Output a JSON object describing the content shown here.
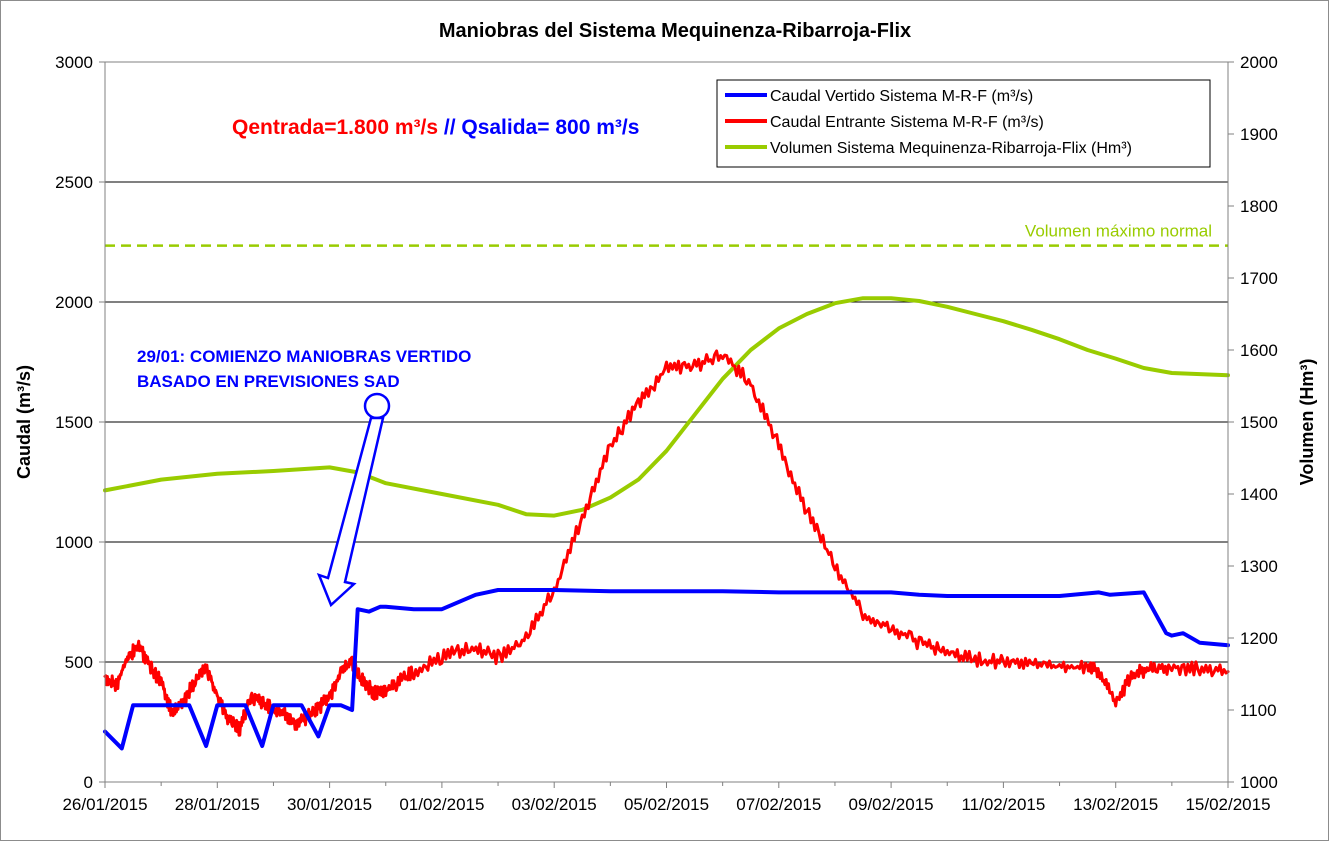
{
  "chart_data": {
    "type": "line",
    "title": "Maniobras del Sistema Mequinenza-Ribarroja-Flix",
    "y_left": {
      "label": "Caudal (m³/s)",
      "range": [
        0,
        3000
      ],
      "ticks": [
        "0",
        "500",
        "1000",
        "1500",
        "2000",
        "2500",
        "3000"
      ]
    },
    "y_right": {
      "label": "Volumen (Hm³)",
      "range": [
        1000,
        2000
      ],
      "ticks": [
        "1000",
        "1100",
        "1200",
        "1300",
        "1400",
        "1500",
        "1600",
        "1700",
        "1800",
        "1900",
        "2000"
      ]
    },
    "x_axis": {
      "range_days": [
        "26/01/2015",
        "15/02/2015"
      ],
      "ticks": [
        "26/01/2015",
        "28/01/2015",
        "30/01/2015",
        "01/02/2015",
        "03/02/2015",
        "05/02/2015",
        "07/02/2015",
        "09/02/2015",
        "11/02/2015",
        "13/02/2015",
        "15/02/2015"
      ]
    },
    "grid": "horizontal at left-axis ticks",
    "legend_position": "top-right",
    "colors": {
      "vertido": "#0000ff",
      "entrante": "#ff0000",
      "volumen": "#99cc00",
      "annotation_red": "#ff0000",
      "annotation_blue": "#0000ff"
    },
    "headline": {
      "part1": "Qentrada=1.800 m³/s",
      "part2": " // Qsalida= 800 m³/s"
    },
    "reference_line": {
      "label": "Volumen máximo normal",
      "value_hm3": 1745,
      "axis": "right",
      "style": "dashed",
      "color": "#99cc00"
    },
    "annotation": {
      "line1": "29/01: COMIENZO MANIOBRAS VERTIDO",
      "line2": "BASADO EN PREVISIONES SAD",
      "date": "29/01/2015"
    },
    "series": [
      {
        "name": "Caudal Vertido Sistema M-R-F (m³/s)",
        "axis": "left",
        "color": "#0000ff",
        "x_day": [
          0,
          0.3,
          0.5,
          0.8,
          1.0,
          1.5,
          1.8,
          2.0,
          2.5,
          2.8,
          3.0,
          3.5,
          3.8,
          4.0,
          4.2,
          4.4,
          4.5,
          4.7,
          4.9,
          5.0,
          5.5,
          6.0,
          6.6,
          6.8,
          7.0,
          8.0,
          9.0,
          10.0,
          11.0,
          12.0,
          13.0,
          14.0,
          14.5,
          15.0,
          16.0,
          17.0,
          17.7,
          17.9,
          18.5,
          18.9,
          19.0,
          19.2,
          19.5,
          20.0
        ],
        "y": [
          210,
          140,
          320,
          320,
          320,
          320,
          150,
          320,
          320,
          150,
          320,
          320,
          190,
          320,
          320,
          300,
          720,
          710,
          730,
          730,
          720,
          720,
          780,
          790,
          800,
          800,
          795,
          795,
          795,
          790,
          790,
          790,
          780,
          775,
          775,
          775,
          790,
          780,
          790,
          620,
          610,
          620,
          580,
          570
        ]
      },
      {
        "name": "Caudal Entrante Sistema M-R-F (m³/s)",
        "axis": "left",
        "color": "#ff0000",
        "x_day": [
          0,
          0.2,
          0.4,
          0.6,
          0.8,
          1.0,
          1.2,
          1.4,
          1.6,
          1.8,
          2.0,
          2.2,
          2.4,
          2.6,
          2.8,
          3.0,
          3.2,
          3.4,
          3.6,
          3.8,
          4.0,
          4.2,
          4.4,
          4.6,
          4.8,
          5.0,
          5.2,
          5.5,
          6.0,
          6.5,
          7.0,
          7.5,
          8.0,
          8.5,
          9.0,
          9.5,
          10.0,
          10.5,
          11.0,
          11.5,
          12.0,
          12.5,
          13.0,
          13.5,
          14.0,
          14.5,
          15.0,
          15.5,
          16.0,
          16.5,
          17.0,
          17.5,
          17.7,
          18.0,
          18.3,
          18.6,
          19.0,
          19.5,
          20.0
        ],
        "y": [
          440,
          400,
          520,
          570,
          480,
          420,
          280,
          340,
          420,
          480,
          360,
          260,
          220,
          360,
          330,
          300,
          280,
          240,
          270,
          310,
          350,
          460,
          500,
          420,
          370,
          380,
          410,
          460,
          520,
          560,
          520,
          600,
          800,
          1100,
          1400,
          1580,
          1720,
          1730,
          1780,
          1660,
          1400,
          1130,
          900,
          700,
          640,
          580,
          540,
          510,
          500,
          490,
          480,
          480,
          460,
          330,
          450,
          470,
          480,
          470,
          460
        ]
      },
      {
        "name": "Volumen Sistema Mequinenza-Ribarroja-Flix (Hm³)",
        "axis": "right",
        "color": "#99cc00",
        "x_day": [
          0,
          1,
          2,
          3,
          4,
          4.5,
          5,
          6,
          7,
          7.5,
          8,
          8.5,
          9,
          9.5,
          10,
          10.5,
          11,
          11.5,
          12,
          12.5,
          13,
          13.5,
          14,
          14.5,
          15,
          15.5,
          16,
          16.5,
          17,
          17.5,
          18,
          18.5,
          19,
          20
        ],
        "y": [
          1405,
          1420,
          1428,
          1432,
          1437,
          1430,
          1415,
          1400,
          1385,
          1372,
          1370,
          1378,
          1395,
          1420,
          1460,
          1510,
          1560,
          1600,
          1630,
          1650,
          1665,
          1672,
          1672,
          1668,
          1660,
          1650,
          1640,
          1628,
          1615,
          1600,
          1588,
          1575,
          1568,
          1565
        ]
      }
    ]
  }
}
